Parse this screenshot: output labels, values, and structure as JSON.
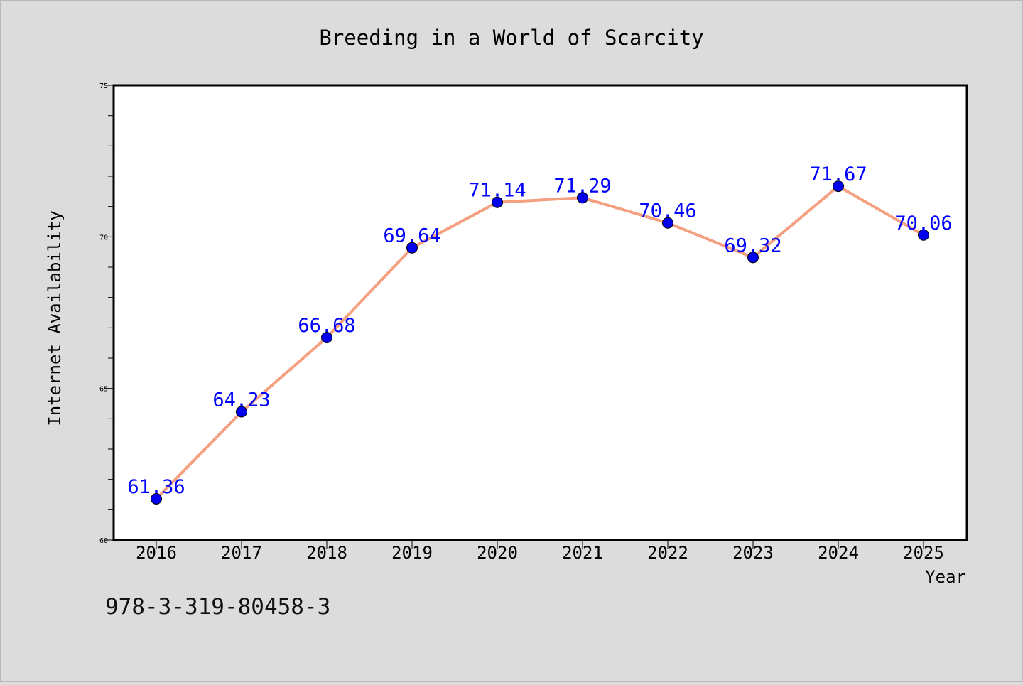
{
  "chart_data": {
    "type": "line",
    "title": "Breeding in a World of Scarcity",
    "xlabel": "Year",
    "ylabel": "Internet Availability",
    "categories": [
      "2016",
      "2017",
      "2018",
      "2019",
      "2020",
      "2021",
      "2022",
      "2023",
      "2024",
      "2025"
    ],
    "series": [
      {
        "values": [
          61.36,
          64.23,
          66.68,
          69.64,
          71.14,
          71.29,
          70.46,
          69.32,
          71.67,
          70.06
        ],
        "labels": [
          "61.36",
          "64.23",
          "66.68",
          "69.64",
          "71.14",
          "71.29",
          "70.46",
          "69.32",
          "71.67",
          "70.06"
        ],
        "line_color": "#f4a081",
        "marker_color": "#0000ee",
        "label_color": "#0000ff"
      }
    ],
    "ylim": [
      60,
      75
    ],
    "y_major_ticks": [
      "60",
      "65",
      "70",
      "75"
    ],
    "y_minor_step": 1,
    "grid": false,
    "annotation": "978-3-319-80458-3"
  },
  "colors": {
    "background": "#dcdcdc",
    "plot_background": "#ffffff",
    "axis": "#000000",
    "text": "#000000"
  }
}
